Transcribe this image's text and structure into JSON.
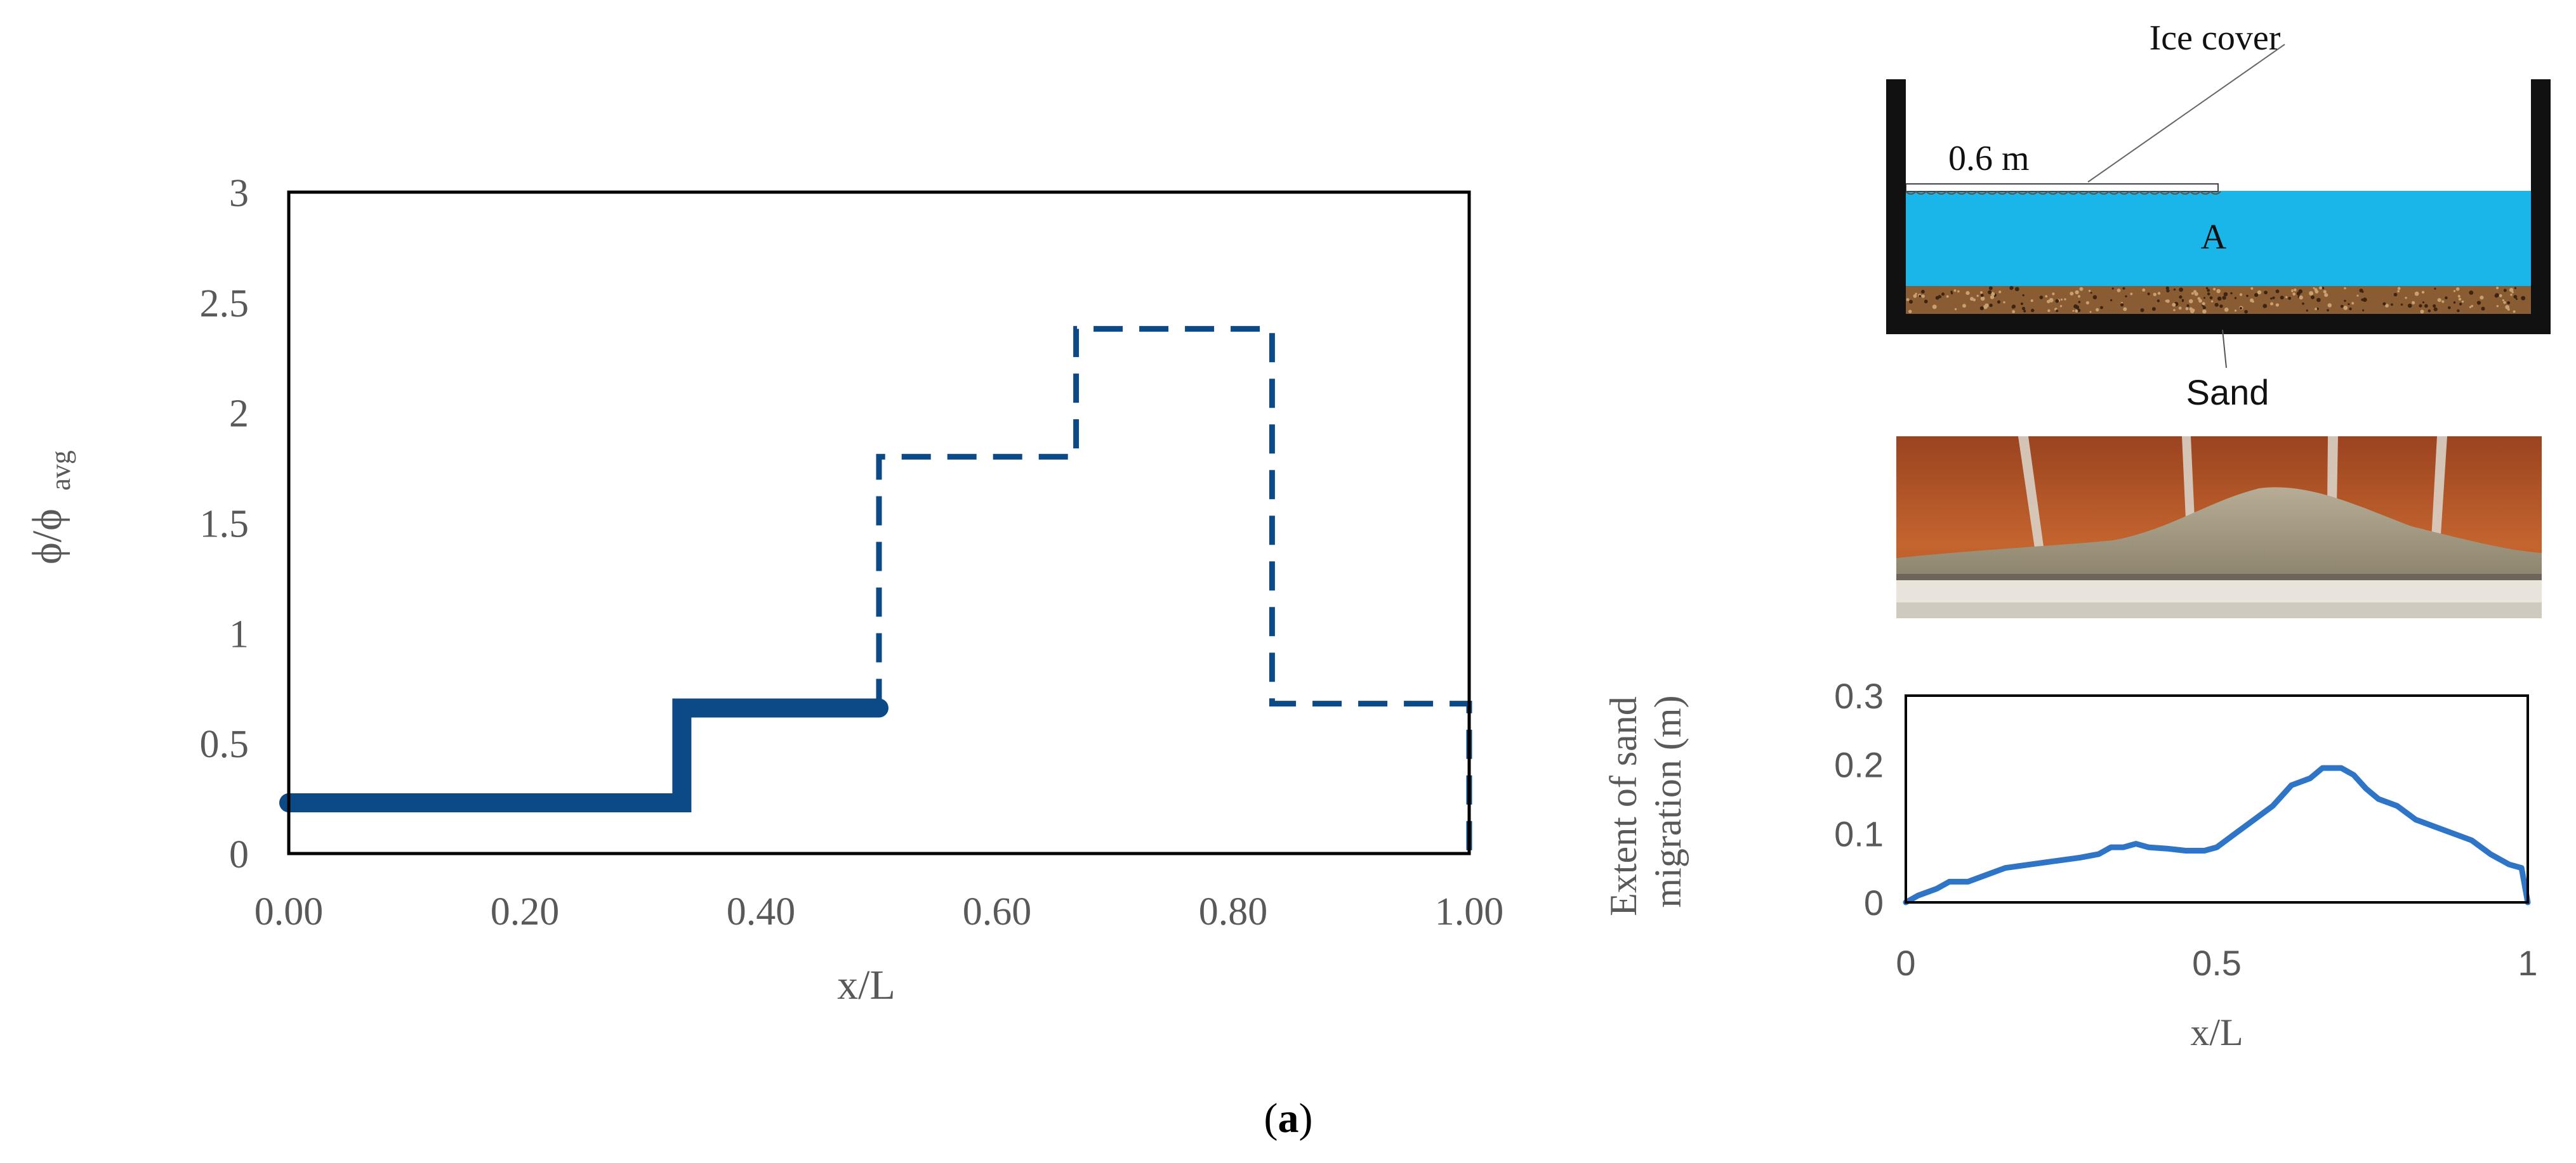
{
  "chart_data": [
    {
      "type": "line",
      "title": "",
      "xlabel": "x/L",
      "ylabel_main": "ϕ/ϕ",
      "ylabel_sub": "avg",
      "xlim": [
        0,
        1
      ],
      "ylim": [
        0,
        3
      ],
      "xticks": [
        0,
        0.2,
        0.4,
        0.6,
        0.8,
        1.0
      ],
      "xtick_labels": [
        "0.00",
        "0.20",
        "0.40",
        "0.60",
        "0.80",
        "1.00"
      ],
      "yticks": [
        0,
        0.5,
        1,
        1.5,
        2,
        2.5,
        3
      ],
      "ytick_labels": [
        "0",
        "0.5",
        "1",
        "1.5",
        "2",
        "2.5",
        "3"
      ],
      "grid": false,
      "legend": "none",
      "series": [
        {
          "style": "solid",
          "color": "#0b4a86",
          "x": [
            0,
            0.333,
            0.333,
            0.5
          ],
          "y": [
            0.23,
            0.23,
            0.66,
            0.66
          ]
        },
        {
          "style": "dashed",
          "color": "#0b4a86",
          "x": [
            0.5,
            0.5,
            0.667,
            0.667,
            0.833,
            0.833,
            1.0,
            1.0
          ],
          "y": [
            0.66,
            1.8,
            1.8,
            2.38,
            2.38,
            0.68,
            0.68,
            0
          ]
        }
      ]
    },
    {
      "type": "line",
      "title": "",
      "xlabel": "x/L",
      "ylabel": "Extent of sand migration (m)",
      "ylabel_line1": "Extent of sand",
      "ylabel_line2": "migration (m)",
      "xlim": [
        0,
        1
      ],
      "ylim": [
        0,
        0.3
      ],
      "xticks": [
        0,
        0.5,
        1
      ],
      "xtick_labels": [
        "0",
        "0.5",
        "1"
      ],
      "yticks": [
        0,
        0.1,
        0.2,
        0.3
      ],
      "ytick_labels": [
        "0",
        "0.1",
        "0.2",
        "0.3"
      ],
      "grid": false,
      "legend": "none",
      "series": [
        {
          "color": "#2e75c8",
          "x": [
            0,
            0.02,
            0.05,
            0.07,
            0.1,
            0.13,
            0.16,
            0.2,
            0.24,
            0.28,
            0.31,
            0.33,
            0.35,
            0.37,
            0.39,
            0.42,
            0.45,
            0.48,
            0.5,
            0.53,
            0.56,
            0.59,
            0.62,
            0.65,
            0.67,
            0.7,
            0.72,
            0.74,
            0.76,
            0.79,
            0.82,
            0.85,
            0.88,
            0.91,
            0.94,
            0.97,
            0.99,
            1.0
          ],
          "y": [
            0,
            0.01,
            0.02,
            0.03,
            0.03,
            0.04,
            0.05,
            0.055,
            0.06,
            0.065,
            0.07,
            0.08,
            0.08,
            0.085,
            0.08,
            0.078,
            0.075,
            0.075,
            0.08,
            0.1,
            0.12,
            0.14,
            0.17,
            0.18,
            0.195,
            0.195,
            0.185,
            0.165,
            0.15,
            0.14,
            0.12,
            0.11,
            0.1,
            0.09,
            0.07,
            0.055,
            0.05,
            0
          ]
        }
      ]
    }
  ],
  "diagram": {
    "ice_label": "Ice cover",
    "depth_label": "0.6 m",
    "water_label": "A",
    "sand_label": "Sand",
    "colors": {
      "water": "#1ab6ea",
      "sand": "#8a5c33",
      "wall": "#111111"
    }
  },
  "photo": {
    "kind": "laboratory flume photograph showing sand deposit",
    "colors": {
      "walls": "#b2542a",
      "sand": "#a99e88",
      "floor": "#e9e6df"
    }
  },
  "caption": {
    "open": "(",
    "letter": "a",
    "close": ")"
  }
}
